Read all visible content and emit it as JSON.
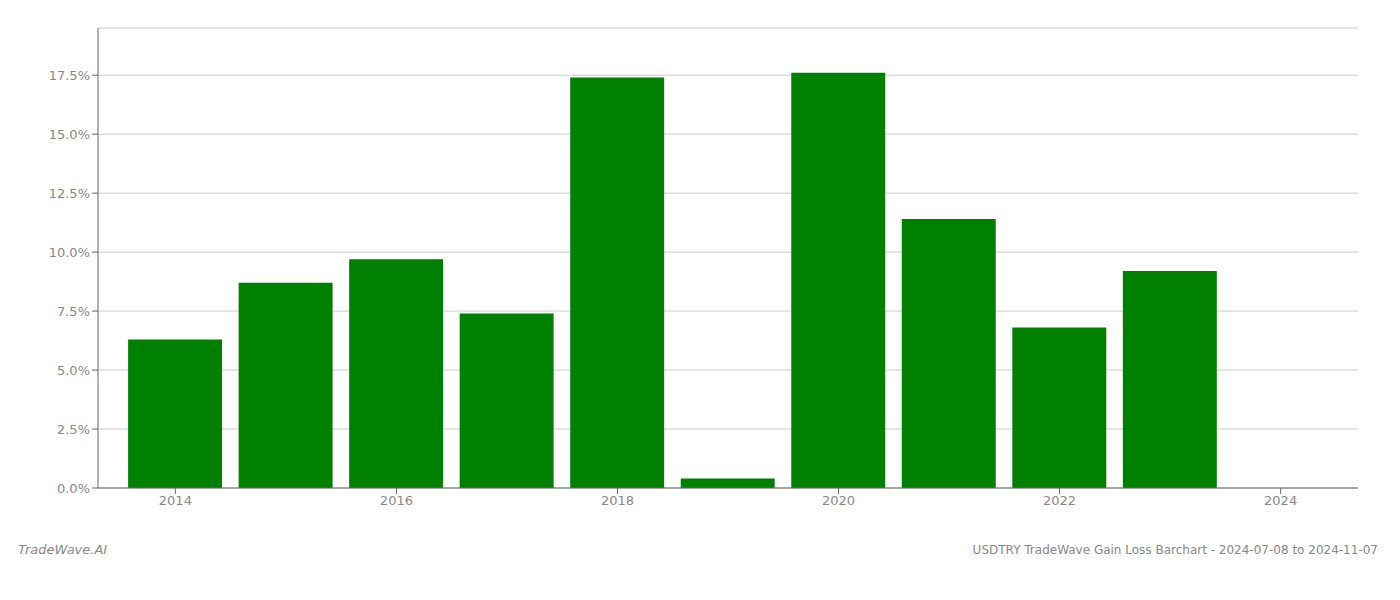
{
  "chart_data": {
    "type": "bar",
    "title": "USDTRY TradeWave Gain Loss Barchart - 2024-07-08 to 2024-11-07",
    "annotations": [
      "TradeWave.AI"
    ],
    "x": [
      2014,
      2015,
      2016,
      2017,
      2018,
      2019,
      2020,
      2021,
      2022,
      2023
    ],
    "values": [
      0.063,
      0.087,
      0.097,
      0.074,
      0.174,
      0.004,
      0.176,
      0.114,
      0.068,
      0.092
    ],
    "color": "#008000",
    "xlim": [
      2013.3,
      2024.7
    ],
    "xticks": [
      2014,
      2016,
      2018,
      2020,
      2022,
      2024
    ],
    "ylim": [
      0,
      0.195
    ],
    "yticks": [
      {
        "value": 0.0,
        "label": "0.0%"
      },
      {
        "value": 0.025,
        "label": "2.5%"
      },
      {
        "value": 0.05,
        "label": "5.0%"
      },
      {
        "value": 0.075,
        "label": "7.5%"
      },
      {
        "value": 0.1,
        "label": "10.0%"
      },
      {
        "value": 0.125,
        "label": "12.5%"
      },
      {
        "value": 0.15,
        "label": "15.0%"
      },
      {
        "value": 0.175,
        "label": "17.5%"
      }
    ],
    "grid": "y"
  }
}
